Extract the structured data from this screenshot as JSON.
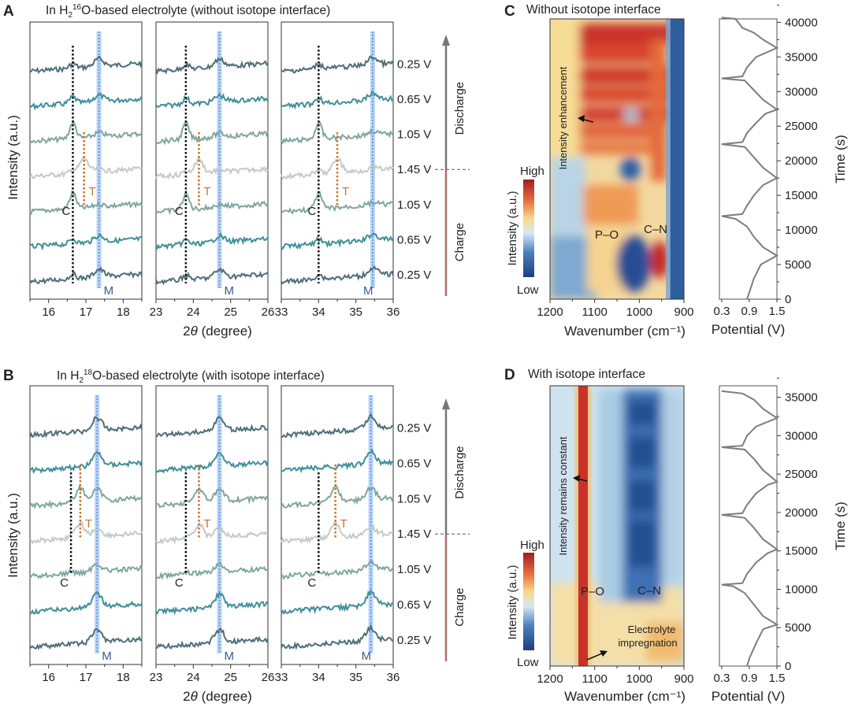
{
  "figure": {
    "panels": {
      "A": {
        "label": "A",
        "title_parts": [
          "In H",
          "2",
          "16",
          "O-based electrolyte (without isotope interface)"
        ]
      },
      "B": {
        "label": "B",
        "title_parts": [
          "In H",
          "2",
          "18",
          "O-based electrolyte (with isotope interface)"
        ]
      },
      "C": {
        "label": "C",
        "title": "Without isotope interface"
      },
      "D": {
        "label": "D",
        "title": "With isotope interface"
      }
    },
    "xrd_common": {
      "ylabel": "Intensity (a.u.)",
      "xlabel_italic": "θ",
      "xlabel_prefix": "2",
      "xlabel_suffix": " (degree)",
      "voltages": [
        "0.25 V",
        "0.65 V",
        "1.05 V",
        "1.45 V",
        "1.05 V",
        "0.65 V",
        "0.25 V"
      ],
      "discharge_label": "Discharge",
      "charge_label": "Charge",
      "marker_labels": {
        "C": "C",
        "T": "T",
        "M": "M"
      },
      "trace_colors": [
        "#4e6e78",
        "#3f8f9a",
        "#7ea6a2",
        "#c3cbc6",
        "#7ea6a2",
        "#3f8f9a",
        "#4e6e78"
      ],
      "colors": {
        "c_line": "#111111",
        "t_line": "#c8742c",
        "m_band": "#7fb0f0",
        "discharge_arrow": "#777777",
        "charge_arrow": "#b07070"
      }
    },
    "heatmap_common": {
      "colorbar_high": "High",
      "colorbar_low": "Low",
      "colorbar_label": "Intensity (a.u.)",
      "xlabel": "Wavenumber (cm⁻¹)",
      "potential_xlabel": "Potential (V)",
      "time_ylabel": "Time (s)",
      "po_label": "P–O",
      "cn_label": "C–N"
    },
    "C_annotations": {
      "arrow_text": "Intensity enhancement"
    },
    "D_annotations": {
      "arrow_text": "Intensity remains constant",
      "impregnation_line1": "Electrolyte",
      "impregnation_line2": "impregnation"
    }
  },
  "chart_data": [
    {
      "type": "line",
      "panel": "A",
      "title": "In H2(16)O-based electrolyte (without isotope interface)",
      "xlabel": "2θ (degree)",
      "ylabel": "Intensity (a.u.)",
      "subplots": [
        {
          "xlim": [
            15.5,
            18.5
          ],
          "xticks": [
            16,
            17,
            18
          ],
          "C": 16.65,
          "T": 16.95,
          "M": 17.35
        },
        {
          "xlim": [
            23,
            26
          ],
          "xticks": [
            23,
            24,
            25,
            26
          ],
          "C": 23.8,
          "T": 24.15,
          "M": 24.7
        },
        {
          "xlim": [
            33,
            36
          ],
          "xticks": [
            33,
            34,
            35,
            36
          ],
          "C": 34.0,
          "T": 34.5,
          "M": 35.45
        }
      ],
      "series": [
        {
          "name": "0.25 V (discharge end)",
          "t_peak": false,
          "c_strength": 0.3,
          "m_strength": 0.6
        },
        {
          "name": "0.65 V",
          "t_peak": false,
          "c_strength": 0.4,
          "m_strength": 0.5
        },
        {
          "name": "1.05 V",
          "t_peak": false,
          "c_strength": 1.0,
          "m_strength": 0.3
        },
        {
          "name": "1.45 V",
          "t_peak": true,
          "c_strength": 0.2,
          "m_strength": 0.2
        },
        {
          "name": "1.05 V",
          "t_peak": false,
          "c_strength": 1.0,
          "m_strength": 0.2
        },
        {
          "name": "0.65 V",
          "t_peak": false,
          "c_strength": 0.3,
          "m_strength": 0.5
        },
        {
          "name": "0.25 V (charge start)",
          "t_peak": false,
          "c_strength": 0.3,
          "m_strength": 0.6
        }
      ]
    },
    {
      "type": "line",
      "panel": "B",
      "title": "In H2(18)O-based electrolyte (with isotope interface)",
      "xlabel": "2θ (degree)",
      "ylabel": "Intensity (a.u.)",
      "subplots": [
        {
          "xlim": [
            15.5,
            18.5
          ],
          "xticks": [
            16,
            17,
            18
          ],
          "C": 16.6,
          "T": 16.85,
          "M": 17.3
        },
        {
          "xlim": [
            23,
            26
          ],
          "xticks": [
            23,
            24,
            25,
            26
          ],
          "C": 23.8,
          "T": 24.15,
          "M": 24.7
        },
        {
          "xlim": [
            33,
            36
          ],
          "xticks": [
            33,
            34,
            35,
            36
          ],
          "C": 34.0,
          "T": 34.45,
          "M": 35.4
        }
      ],
      "series": [
        {
          "name": "0.25 V",
          "t_peak": false,
          "c_strength": 0.0,
          "m_strength": 1.0
        },
        {
          "name": "0.65 V",
          "t_peak": false,
          "c_strength": 0.0,
          "m_strength": 1.0
        },
        {
          "name": "1.05 V",
          "t_peak": true,
          "c_strength": 0.1,
          "m_strength": 0.9
        },
        {
          "name": "1.45 V",
          "t_peak": true,
          "c_strength": 0.1,
          "m_strength": 0.6
        },
        {
          "name": "1.05 V",
          "t_peak": false,
          "c_strength": 0.1,
          "m_strength": 0.6
        },
        {
          "name": "0.65 V",
          "t_peak": false,
          "c_strength": 0.0,
          "m_strength": 1.0
        },
        {
          "name": "0.25 V",
          "t_peak": false,
          "c_strength": 0.0,
          "m_strength": 1.0
        }
      ]
    },
    {
      "type": "heatmap",
      "panel": "C",
      "title": "Without isotope interface",
      "xlabel": "Wavenumber (cm⁻¹)",
      "xlim": [
        1200,
        900
      ],
      "xticks": [
        1200,
        1100,
        1000,
        900
      ],
      "colorbar": [
        "Low",
        "High"
      ],
      "annotations": [
        "P–O",
        "C–N",
        "Intensity enhancement"
      ]
    },
    {
      "type": "line",
      "panel": "C-potential",
      "xlabel": "Potential (V)",
      "ylabel": "Time (s)",
      "xlim": [
        0.25,
        1.5
      ],
      "xticks": [
        0.3,
        0.9,
        1.5
      ],
      "ylim": [
        0,
        40500
      ],
      "yticks": [
        0,
        5000,
        10000,
        15000,
        20000,
        25000,
        30000,
        35000,
        40000
      ],
      "points": [
        [
          0.85,
          0
        ],
        [
          0.9,
          1000
        ],
        [
          1.0,
          3000
        ],
        [
          1.15,
          5000
        ],
        [
          1.5,
          6300
        ],
        [
          1.2,
          7500
        ],
        [
          1.0,
          9000
        ],
        [
          0.85,
          10500
        ],
        [
          0.6,
          11600
        ],
        [
          0.3,
          12000
        ],
        [
          0.75,
          12300
        ],
        [
          0.85,
          13500
        ],
        [
          1.0,
          15000
        ],
        [
          1.2,
          16500
        ],
        [
          1.5,
          17500
        ],
        [
          1.2,
          19000
        ],
        [
          1.0,
          20500
        ],
        [
          0.8,
          22000
        ],
        [
          0.3,
          22400
        ],
        [
          0.75,
          22700
        ],
        [
          0.85,
          24000
        ],
        [
          1.05,
          25500
        ],
        [
          1.25,
          26800
        ],
        [
          1.5,
          27400
        ],
        [
          1.2,
          28800
        ],
        [
          1.0,
          30200
        ],
        [
          0.8,
          31600
        ],
        [
          0.3,
          31900
        ],
        [
          0.75,
          32200
        ],
        [
          0.85,
          33500
        ],
        [
          1.05,
          35000
        ],
        [
          1.5,
          36300
        ],
        [
          1.2,
          37500
        ],
        [
          1.0,
          38500
        ],
        [
          0.75,
          39200
        ],
        [
          0.6,
          40500
        ],
        [
          0.3,
          40700
        ]
      ]
    },
    {
      "type": "heatmap",
      "panel": "D",
      "title": "With isotope interface",
      "xlabel": "Wavenumber (cm⁻¹)",
      "xlim": [
        1200,
        900
      ],
      "xticks": [
        1200,
        1100,
        1000,
        900
      ],
      "colorbar": [
        "Low",
        "High"
      ],
      "annotations": [
        "P–O",
        "C–N",
        "Intensity remains constant",
        "Electrolyte impregnation"
      ]
    },
    {
      "type": "line",
      "panel": "D-potential",
      "xlabel": "Potential (V)",
      "ylabel": "Time (s)",
      "xlim": [
        0.25,
        1.5
      ],
      "xticks": [
        0.3,
        0.9,
        1.5
      ],
      "ylim": [
        0,
        36500
      ],
      "yticks": [
        0,
        5000,
        10000,
        15000,
        20000,
        25000,
        30000,
        35000
      ],
      "points": [
        [
          0.85,
          0
        ],
        [
          0.9,
          1000
        ],
        [
          1.05,
          3000
        ],
        [
          1.2,
          4800
        ],
        [
          1.5,
          5400
        ],
        [
          1.2,
          6500
        ],
        [
          1.0,
          8000
        ],
        [
          0.8,
          9500
        ],
        [
          0.55,
          10400
        ],
        [
          0.3,
          10600
        ],
        [
          0.75,
          10800
        ],
        [
          0.85,
          12000
        ],
        [
          1.05,
          13500
        ],
        [
          1.3,
          14700
        ],
        [
          1.5,
          15200
        ],
        [
          1.2,
          16500
        ],
        [
          1.0,
          18000
        ],
        [
          0.8,
          19300
        ],
        [
          0.3,
          19700
        ],
        [
          0.75,
          19900
        ],
        [
          0.85,
          21000
        ],
        [
          1.05,
          22500
        ],
        [
          1.3,
          23600
        ],
        [
          1.5,
          24000
        ],
        [
          1.2,
          25500
        ],
        [
          1.0,
          27000
        ],
        [
          0.8,
          28200
        ],
        [
          0.3,
          28500
        ],
        [
          0.75,
          28700
        ],
        [
          0.85,
          30000
        ],
        [
          1.05,
          31200
        ],
        [
          1.5,
          32300
        ],
        [
          1.2,
          33500
        ],
        [
          1.0,
          34700
        ],
        [
          0.75,
          35500
        ],
        [
          0.3,
          35800
        ]
      ]
    }
  ]
}
